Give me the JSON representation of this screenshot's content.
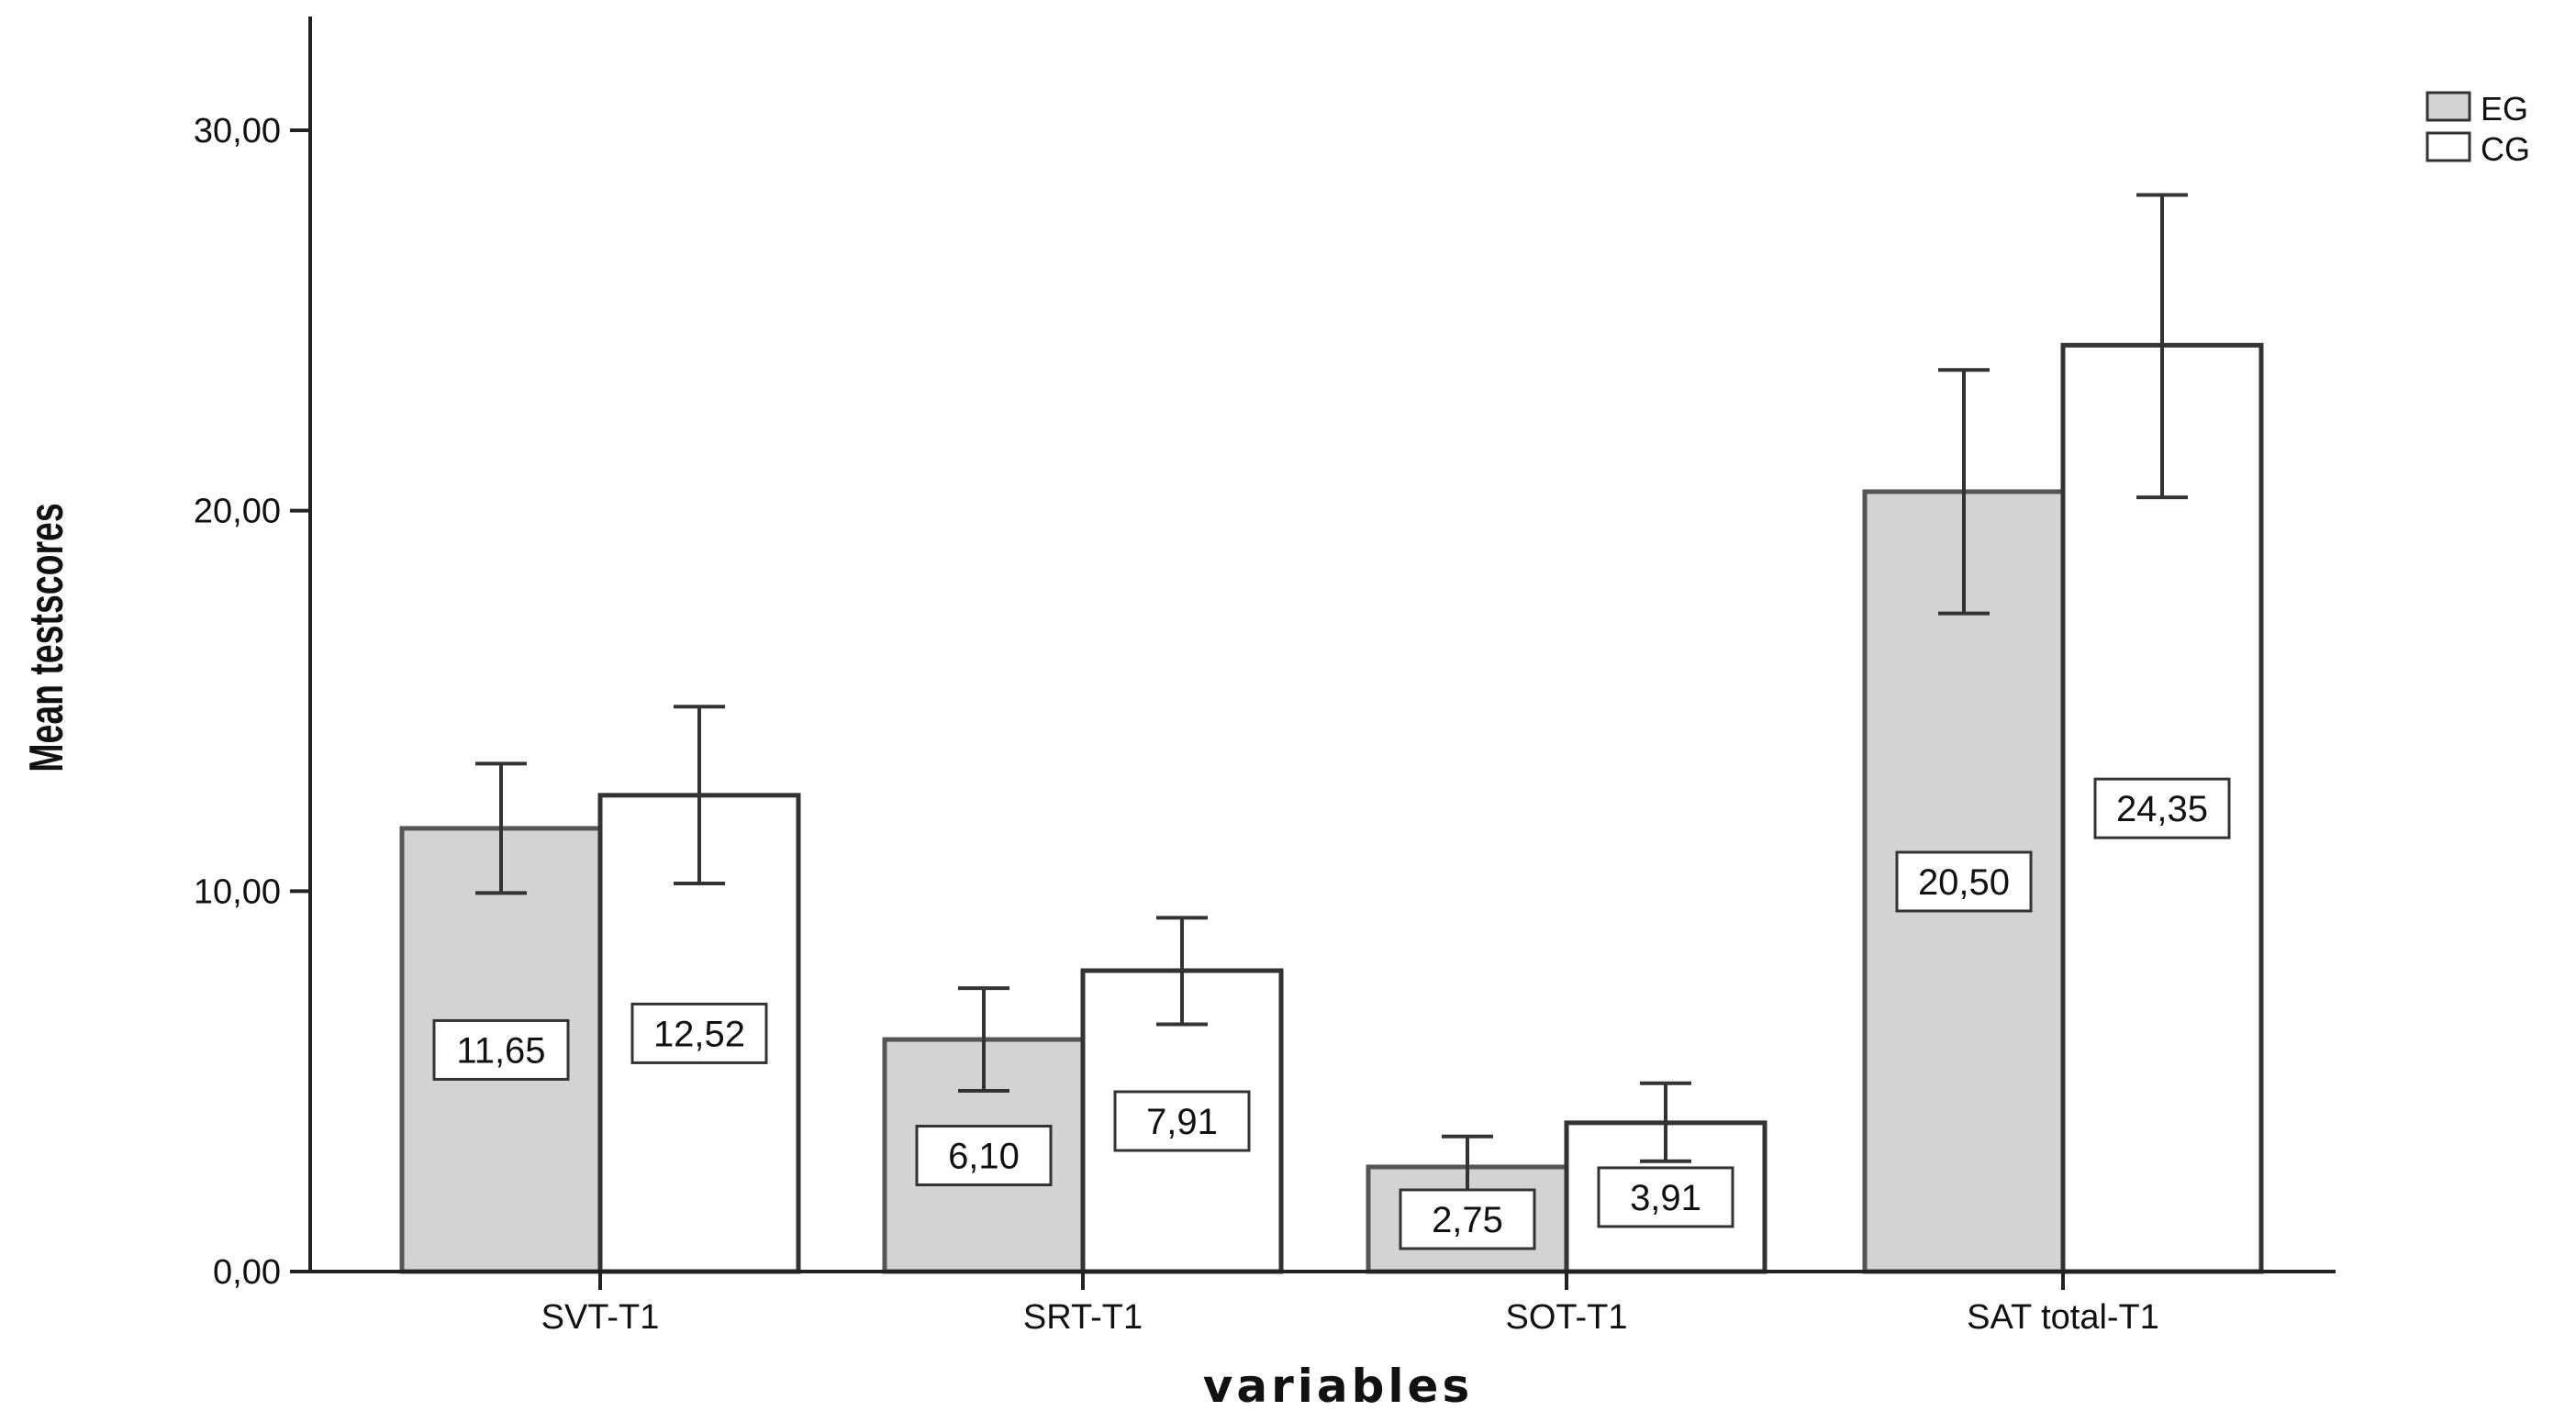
{
  "chart_data": {
    "type": "bar",
    "title": "",
    "xlabel": "variables",
    "ylabel": "Mean testscores",
    "ylim": [
      0,
      33
    ],
    "yticks": [
      0,
      10,
      20,
      30
    ],
    "ytick_labels": [
      "0,00",
      "10,00",
      "20,00",
      "30,00"
    ],
    "categories": [
      "SVT-T1",
      "SRT-T1",
      "SOT-T1",
      "SAT total-T1"
    ],
    "series": [
      {
        "name": "EG",
        "color": "#d3d3d3",
        "values": [
          11.65,
          6.1,
          2.75,
          20.5
        ],
        "value_labels": [
          "11,65",
          "6,10",
          "2,75",
          "20,50"
        ],
        "error_low": [
          9.95,
          4.75,
          1.95,
          17.3
        ],
        "error_high": [
          13.35,
          7.45,
          3.55,
          23.7
        ]
      },
      {
        "name": "CG",
        "color": "#ffffff",
        "values": [
          12.52,
          7.91,
          3.91,
          24.35
        ],
        "value_labels": [
          "12,52",
          "7,91",
          "3,91",
          "24,35"
        ],
        "error_low": [
          10.2,
          6.5,
          2.9,
          20.35
        ],
        "error_high": [
          14.85,
          9.3,
          4.95,
          28.3
        ]
      }
    ],
    "legend": [
      "EG",
      "CG"
    ],
    "legend_position": "top-right",
    "grid": false
  }
}
